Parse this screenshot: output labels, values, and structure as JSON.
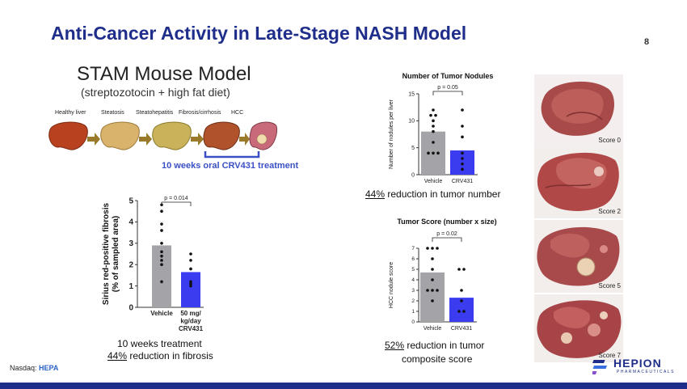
{
  "header": {
    "title": "Anti-Cancer Activity in Late-Stage NASH Model",
    "page_number": "8"
  },
  "model": {
    "title": "STAM Mouse Model",
    "subtitle": "(streptozotocin + high fat diet)",
    "stages": [
      "Healthy liver",
      "Steatosis",
      "Steatohepatitis",
      "Fibrosis/cirrhosis",
      "HCC"
    ],
    "treatment_label": "10 weeks oral CRV431 treatment"
  },
  "fibrosis": {
    "caption_line1": "10 weeks treatment",
    "caption_pct": "44%",
    "caption_rest": " reduction in fibrosis"
  },
  "nodules": {
    "caption_pct": "44%",
    "caption_rest": " reduction in tumor number"
  },
  "tumor_score": {
    "caption_line1_pct": "52%",
    "caption_line1_rest": " reduction in tumor",
    "caption_line2": "composite score"
  },
  "photos": {
    "labels": [
      "Score 0",
      "Score 2",
      "Score 5",
      "Score 7"
    ]
  },
  "footer": {
    "exchange": "Nasdaq:",
    "ticker": "HEPA",
    "logo_name": "HEPION",
    "logo_sub": "PHARMACEUTICALS"
  },
  "colors": {
    "title": "#1f2e8a",
    "vehicle_bar": "#a3a3a8",
    "crv431_bar": "#3b3bf0",
    "treatment_text": "#3b50c4"
  },
  "chart_data": [
    {
      "id": "fibrosis",
      "type": "bar",
      "categories": [
        "Vehicle",
        "50 mg/\nkg/day\nCRV431"
      ],
      "values": [
        2.9,
        1.65
      ],
      "points": [
        [
          4.8,
          4.5,
          3.9,
          3.6,
          3.0,
          2.6,
          2.4,
          2.2,
          2.0,
          1.2
        ],
        [
          2.5,
          2.2,
          1.8,
          1.2,
          1.1,
          1.0
        ]
      ],
      "ylabel": "Sirius red-positive fibrosis\n(% of sampled area)",
      "ylim": [
        0,
        5
      ],
      "yticks": [
        0,
        1,
        2,
        3,
        4,
        5
      ],
      "annotation": "p = 0.014"
    },
    {
      "id": "nodules",
      "type": "bar",
      "title": "Number of Tumor Nodules",
      "categories": [
        "Vehicle",
        "CRV431"
      ],
      "values": [
        8,
        4.5
      ],
      "points": [
        [
          12,
          11,
          11,
          10,
          9,
          8,
          6,
          4,
          4,
          4
        ],
        [
          12,
          9,
          7,
          4,
          3,
          2,
          1
        ]
      ],
      "ylabel": "Number of nodules per liver",
      "ylim": [
        0,
        15
      ],
      "yticks": [
        0,
        5,
        10,
        15
      ],
      "annotation": "p = 0.05"
    },
    {
      "id": "tumor_score",
      "type": "bar",
      "title": "Tumor Score (number x size)",
      "categories": [
        "Vehicle",
        "CRV431"
      ],
      "values": [
        4.7,
        2.3
      ],
      "points": [
        [
          7,
          7,
          7,
          6,
          5,
          4,
          3,
          3,
          3,
          2
        ],
        [
          5,
          5,
          3,
          2,
          1,
          1
        ]
      ],
      "ylabel": "HCC nodule score",
      "ylim": [
        0,
        7
      ],
      "yticks": [
        0,
        1,
        2,
        3,
        4,
        5,
        6,
        7
      ],
      "annotation": "p = 0.02"
    }
  ]
}
